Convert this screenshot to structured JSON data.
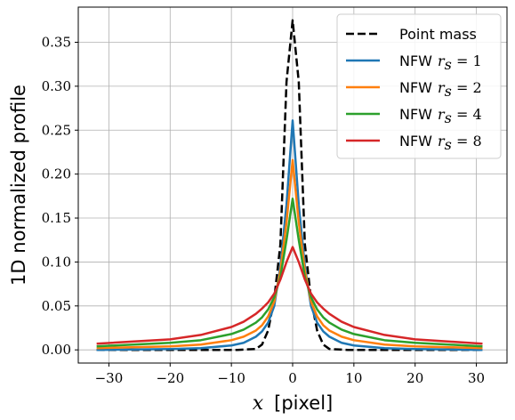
{
  "chart_data": {
    "type": "line",
    "xlabel_var": "x",
    "xlabel_unit": "[pixel]",
    "ylabel": "1D normalized profile",
    "xlim": [
      -35,
      35
    ],
    "ylim": [
      -0.015,
      0.39
    ],
    "xticks": [
      -30,
      -20,
      -10,
      0,
      10,
      20,
      30
    ],
    "yticks": [
      0.0,
      0.05,
      0.1,
      0.15,
      0.2,
      0.25,
      0.3,
      0.35
    ],
    "ytick_labels": [
      "0.00",
      "0.05",
      "0.10",
      "0.15",
      "0.20",
      "0.25",
      "0.30",
      "0.35"
    ],
    "xtick_labels": [
      "−30",
      "−20",
      "−10",
      "0",
      "10",
      "20",
      "30"
    ],
    "grid": true,
    "legend_position": "top-right",
    "x_range": [
      -32,
      31
    ],
    "series": [
      {
        "name": "Point mass",
        "legend_text": "Point mass",
        "color": "#000000",
        "dash": true,
        "x": [
          -32,
          -9,
          -6,
          -5,
          -4,
          -3,
          -2,
          -1,
          0,
          1,
          2,
          3,
          4,
          5,
          6,
          9,
          31
        ],
        "y": [
          0.0,
          0.0,
          0.001,
          0.006,
          0.022,
          0.058,
          0.12,
          0.305,
          0.375,
          0.305,
          0.12,
          0.058,
          0.022,
          0.006,
          0.001,
          0.0,
          0.0
        ]
      },
      {
        "name": "NFW r_s = 1",
        "legend_text": "NFW",
        "legend_var": "r",
        "legend_sub": "s",
        "legend_val": " = 1",
        "color": "#1f77b4",
        "dash": false,
        "x": [
          -32,
          -20,
          -15,
          -10,
          -8,
          -6,
          -5,
          -4,
          -3,
          -2,
          -1,
          0,
          1,
          2,
          3,
          4,
          5,
          6,
          8,
          10,
          15,
          20,
          31
        ],
        "y": [
          0.0,
          0.001,
          0.002,
          0.005,
          0.008,
          0.015,
          0.021,
          0.031,
          0.05,
          0.095,
          0.165,
          0.261,
          0.165,
          0.095,
          0.05,
          0.031,
          0.021,
          0.015,
          0.008,
          0.005,
          0.002,
          0.001,
          0.0
        ]
      },
      {
        "name": "NFW r_s = 2",
        "legend_text": "NFW",
        "legend_var": "r",
        "legend_sub": "s",
        "legend_val": " = 2",
        "color": "#ff7f0e",
        "dash": false,
        "x": [
          -32,
          -20,
          -15,
          -10,
          -8,
          -6,
          -5,
          -4,
          -3,
          -2,
          -1,
          0,
          1,
          2,
          3,
          4,
          5,
          6,
          8,
          10,
          15,
          20,
          31
        ],
        "y": [
          0.002,
          0.004,
          0.006,
          0.011,
          0.015,
          0.022,
          0.028,
          0.038,
          0.055,
          0.09,
          0.145,
          0.216,
          0.145,
          0.09,
          0.055,
          0.038,
          0.028,
          0.022,
          0.015,
          0.011,
          0.006,
          0.004,
          0.002
        ]
      },
      {
        "name": "NFW r_s = 4",
        "legend_text": "NFW",
        "legend_var": "r",
        "legend_sub": "s",
        "legend_val": " = 4",
        "color": "#2ca02c",
        "dash": false,
        "x": [
          -32,
          -20,
          -15,
          -10,
          -8,
          -6,
          -5,
          -4,
          -3,
          -2,
          -1,
          0,
          1,
          2,
          3,
          4,
          5,
          6,
          8,
          10,
          15,
          20,
          31
        ],
        "y": [
          0.004,
          0.008,
          0.011,
          0.018,
          0.023,
          0.031,
          0.037,
          0.046,
          0.06,
          0.083,
          0.125,
          0.172,
          0.125,
          0.083,
          0.06,
          0.046,
          0.037,
          0.031,
          0.023,
          0.018,
          0.011,
          0.008,
          0.004
        ]
      },
      {
        "name": "NFW r_s = 8",
        "legend_text": "NFW",
        "legend_var": "r",
        "legend_sub": "s",
        "legend_val": " = 8",
        "color": "#d62728",
        "dash": false,
        "x": [
          -32,
          -20,
          -15,
          -10,
          -8,
          -6,
          -5,
          -4,
          -3,
          -2,
          -1,
          0,
          1,
          2,
          3,
          4,
          5,
          6,
          8,
          10,
          15,
          20,
          31
        ],
        "y": [
          0.007,
          0.012,
          0.017,
          0.026,
          0.032,
          0.041,
          0.047,
          0.054,
          0.064,
          0.08,
          0.1,
          0.117,
          0.1,
          0.08,
          0.064,
          0.054,
          0.047,
          0.041,
          0.032,
          0.026,
          0.017,
          0.012,
          0.007
        ]
      }
    ]
  }
}
